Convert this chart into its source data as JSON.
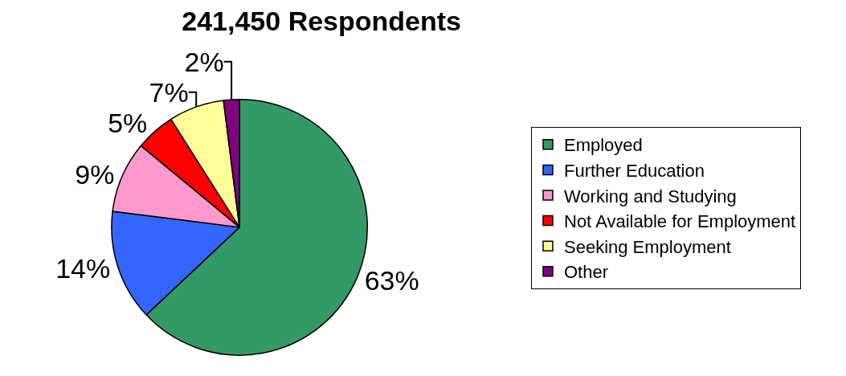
{
  "chart_data": {
    "type": "pie",
    "title": "241,450 Respondents",
    "categories": [
      "Employed",
      "Further Education",
      "Working and Studying",
      "Not Available for Employment",
      "Seeking Employment",
      "Other"
    ],
    "values": [
      63,
      14,
      9,
      5,
      7,
      2
    ],
    "colors": [
      "#339966",
      "#3366ff",
      "#ff99cc",
      "#ff0000",
      "#ffff99",
      "#800080"
    ],
    "value_labels": [
      "63%",
      "14%",
      "9%",
      "5%",
      "7%",
      "2%"
    ],
    "legend": "right"
  }
}
